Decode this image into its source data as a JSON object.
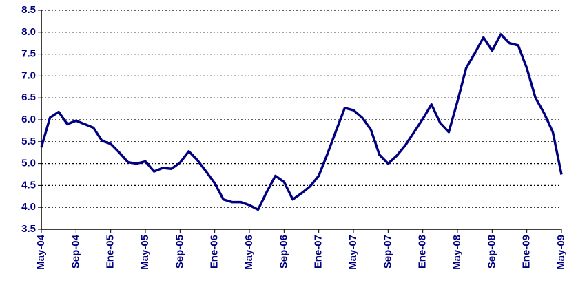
{
  "chart_data": {
    "type": "line",
    "categories": [
      "May-04",
      null,
      null,
      null,
      "Sep-04",
      null,
      null,
      null,
      "Ene-05",
      null,
      null,
      null,
      "May-05",
      null,
      null,
      null,
      "Sep-05",
      null,
      null,
      null,
      "Ene-06",
      null,
      null,
      null,
      "May-06",
      null,
      null,
      null,
      "Sep-06",
      null,
      null,
      null,
      "Ene-07",
      null,
      null,
      null,
      "May-07",
      null,
      null,
      null,
      "Sep-07",
      null,
      null,
      null,
      "Ene-08",
      null,
      null,
      null,
      "May-08",
      null,
      null,
      null,
      "Sep-08",
      null,
      null,
      null,
      "Ene-09",
      null,
      null,
      null,
      "May-09"
    ],
    "values": [
      5.37,
      6.05,
      6.18,
      5.9,
      5.98,
      5.9,
      5.82,
      5.52,
      5.45,
      5.25,
      5.03,
      5.0,
      5.05,
      4.82,
      4.9,
      4.88,
      5.02,
      5.28,
      5.08,
      4.82,
      4.55,
      4.18,
      4.12,
      4.12,
      4.05,
      3.95,
      4.35,
      4.72,
      4.58,
      4.18,
      4.32,
      4.48,
      4.72,
      5.22,
      5.75,
      6.27,
      6.22,
      6.05,
      5.78,
      5.2,
      5.0,
      5.18,
      5.42,
      5.72,
      6.02,
      6.35,
      5.93,
      5.72,
      6.42,
      7.18,
      7.52,
      7.88,
      7.58,
      7.95,
      7.75,
      7.7,
      7.18,
      6.5,
      6.15,
      5.72,
      4.75
    ],
    "color": "#000080",
    "ylim": [
      3.5,
      8.5
    ],
    "yticks": [
      3.5,
      {
        "value": 4,
        "label": "4.0"
      },
      4.5,
      {
        "value": 5,
        "label": "5.0"
      },
      5.5,
      {
        "value": 6,
        "label": "6.0"
      },
      6.5,
      {
        "value": 7,
        "label": "7.0"
      },
      7.5,
      {
        "value": 8,
        "label": "8.0"
      },
      8.5
    ],
    "grid": true
  }
}
